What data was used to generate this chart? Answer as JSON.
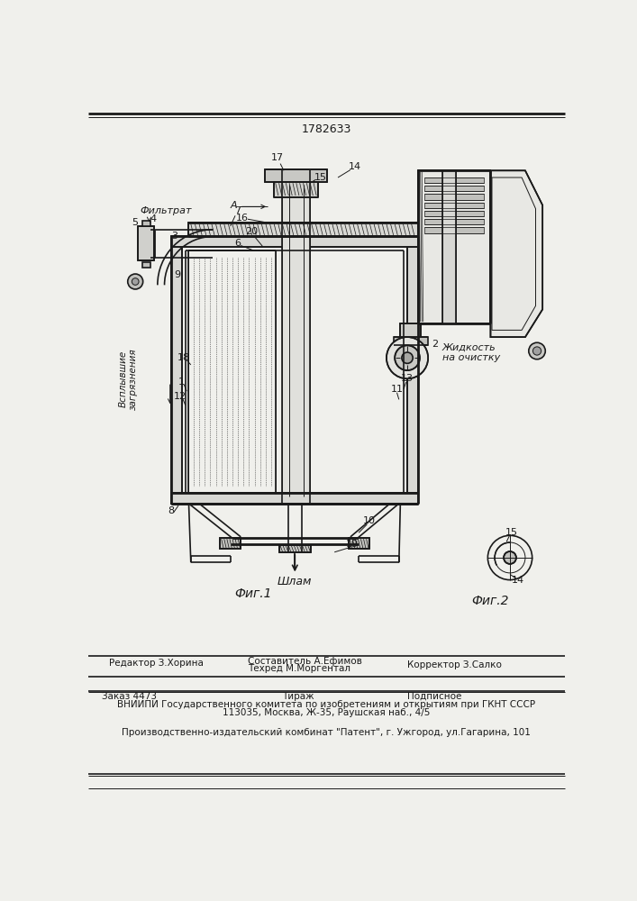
{
  "patent_number": "1782633",
  "bg_color": "#f0f0ec",
  "line_color": "#1a1a1a",
  "hatch_color": "#555555",
  "fig1_label": "Фиг.1",
  "fig2_label": "Фиг.2",
  "editor_line": "Редактор З.Хорина",
  "compiler_line1": "Составитель А.Ефимов",
  "compiler_line2": "Техред М.Моргентал",
  "corrector_line": "Корректор З.Салко",
  "order_line": "Заказ 4473",
  "tirazh_line": "Тираж",
  "podpisnoe_line": "Подписное",
  "vniiipi_line": "ВНИИПИ Государственного комитета по изобретениям и открытиям при ГКНТ СССР",
  "address_line": "113035, Москва, Ж-35, Раушская наб., 4/5",
  "factory_line": "Производственно-издательский комбинат \"Патент\", г. Ужгород, ул.Гагарина, 101",
  "filtrat_label": "Фильтрат",
  "vsplyvshie_label": "Всплывшие\nзагрязнения",
  "shlam_label": "Шлам",
  "zhidkost_label": "Жидкость\nна очистку"
}
